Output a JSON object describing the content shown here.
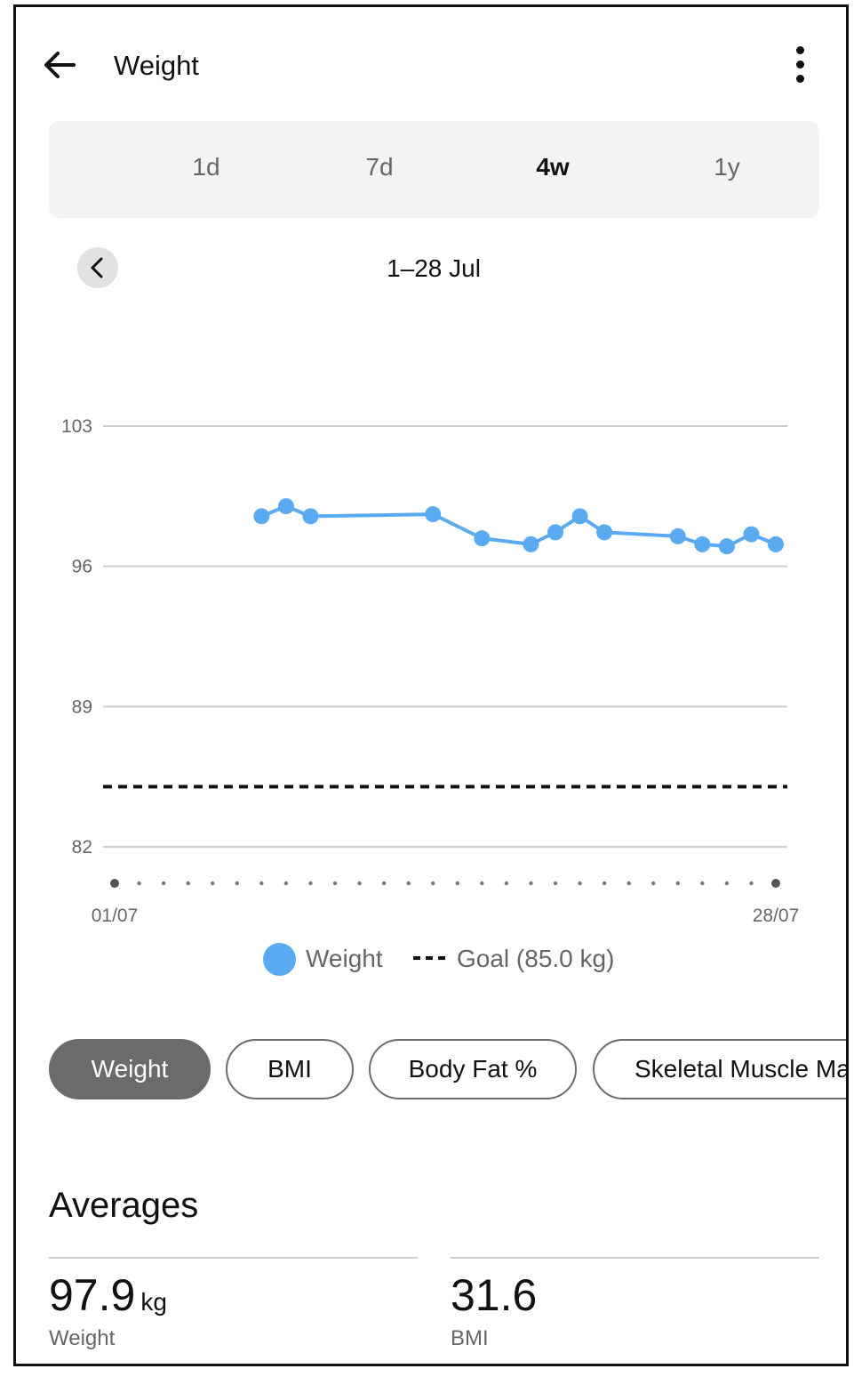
{
  "header": {
    "title": "Weight"
  },
  "range_tabs": [
    {
      "label": "1d",
      "active": false
    },
    {
      "label": "7d",
      "active": false
    },
    {
      "label": "4w",
      "active": true
    },
    {
      "label": "1y",
      "active": false
    }
  ],
  "period": {
    "label": "1–28 Jul"
  },
  "chart_data": {
    "type": "line",
    "y_ticks": [
      "103",
      "96",
      "89",
      "82"
    ],
    "ylim": [
      82,
      103
    ],
    "x_labels": {
      "start": "01/07",
      "end": "28/07"
    },
    "x_range": [
      1,
      28
    ],
    "series": [
      {
        "name": "Weight",
        "color": "#5aaaf2",
        "points": [
          {
            "x": 7,
            "y": 98.5
          },
          {
            "x": 8,
            "y": 99.0
          },
          {
            "x": 9,
            "y": 98.5
          },
          {
            "x": 14,
            "y": 98.6
          },
          {
            "x": 16,
            "y": 97.4
          },
          {
            "x": 18,
            "y": 97.1
          },
          {
            "x": 19,
            "y": 97.7
          },
          {
            "x": 20,
            "y": 98.5
          },
          {
            "x": 21,
            "y": 97.7
          },
          {
            "x": 24,
            "y": 97.5
          },
          {
            "x": 25,
            "y": 97.1
          },
          {
            "x": 26,
            "y": 97.0
          },
          {
            "x": 27,
            "y": 97.6
          },
          {
            "x": 28,
            "y": 97.1
          }
        ]
      }
    ],
    "goal": {
      "value": 85.0,
      "label": "Goal (85.0 kg)"
    },
    "grid": true
  },
  "legend": {
    "weight_label": "Weight",
    "goal_label": "Goal (85.0 kg)"
  },
  "metric_chips": [
    {
      "label": "Weight",
      "active": true
    },
    {
      "label": "BMI",
      "active": false
    },
    {
      "label": "Body Fat %",
      "active": false
    },
    {
      "label": "Skeletal Muscle Mass",
      "active": false
    }
  ],
  "averages": {
    "title": "Averages",
    "items": [
      {
        "value": "97.9",
        "unit": "kg",
        "label": "Weight"
      },
      {
        "value": "31.6",
        "unit": "",
        "label": "BMI"
      }
    ]
  }
}
